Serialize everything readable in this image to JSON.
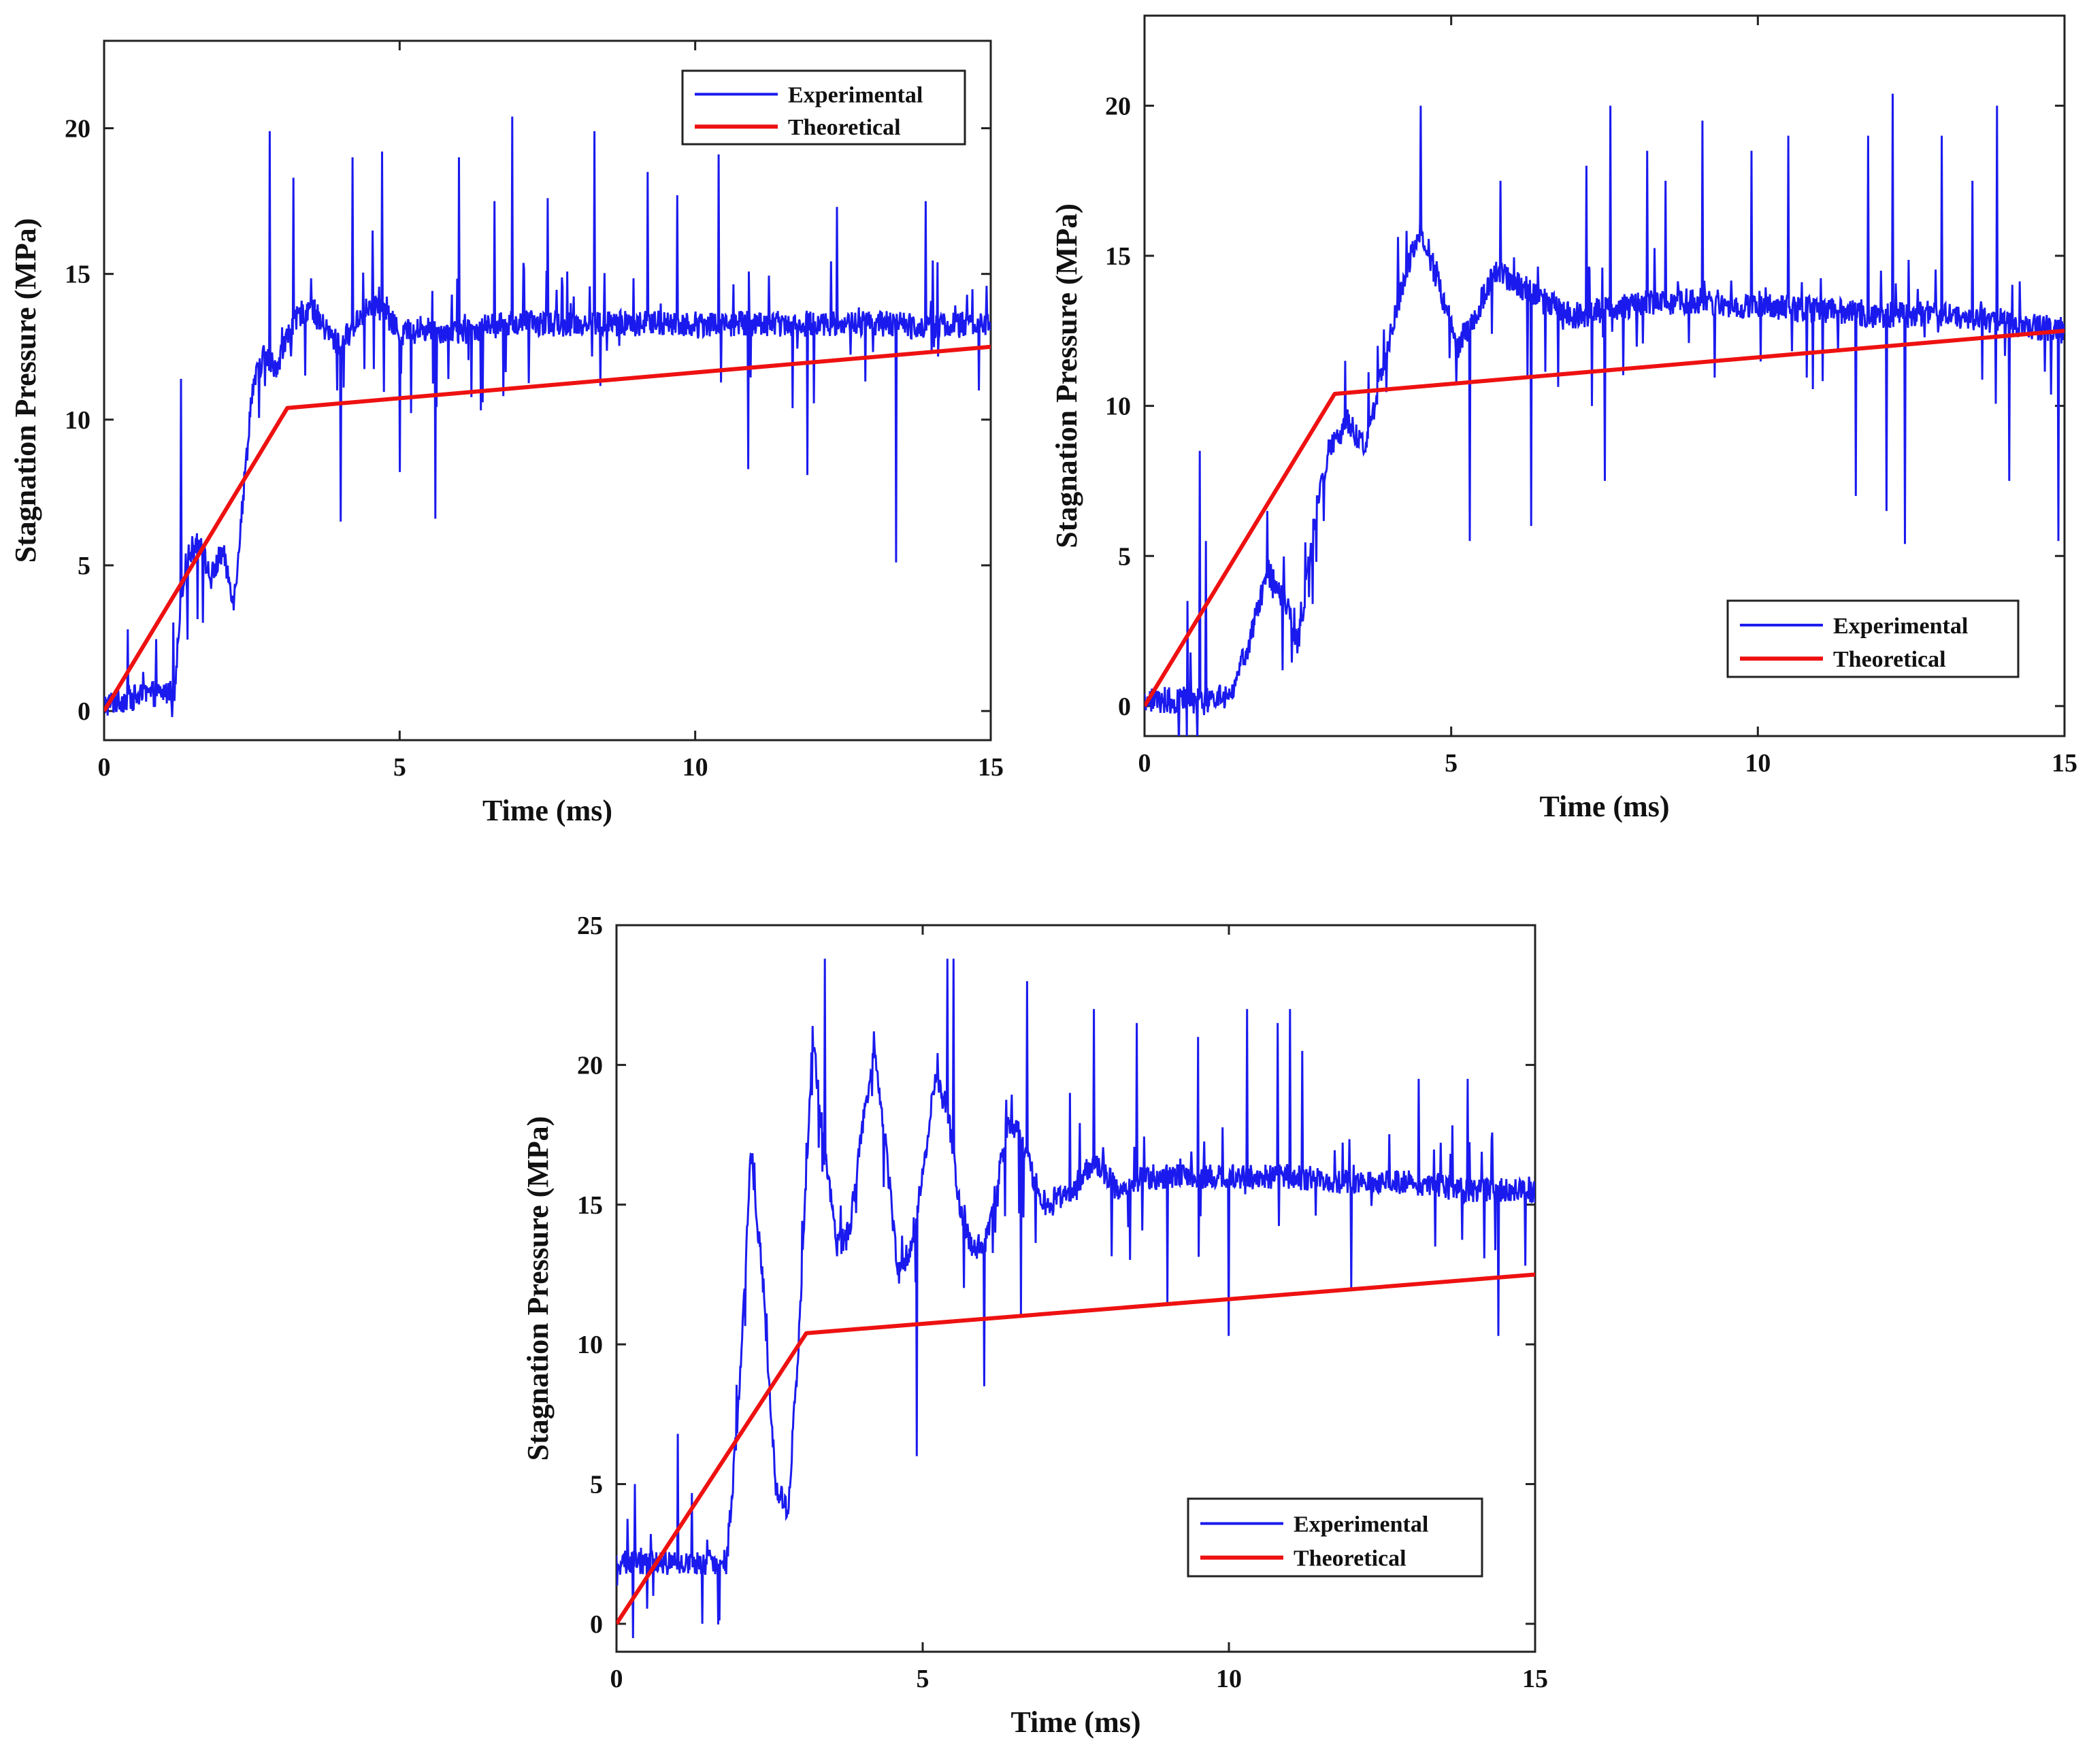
{
  "colors": {
    "experimental": "#1a1aee",
    "theoretical": "#ee1111",
    "axes": "#222222"
  },
  "chart_data": [
    {
      "type": "line",
      "xlabel": "Time (ms)",
      "ylabel": "Stagnation Pressure (MPa)",
      "xlim": [
        0,
        15
      ],
      "ylim": [
        -1,
        23
      ],
      "xticks": [
        "0",
        "5",
        "10",
        "15"
      ],
      "yticks": [
        "0",
        "5",
        "10",
        "15",
        "20"
      ],
      "grid": false,
      "legend_position": "top-right",
      "series": [
        {
          "name": "Experimental",
          "x": [
            0,
            0.3,
            0.6,
            0.9,
            1.2,
            1.3,
            1.4,
            1.6,
            1.8,
            2.0,
            2.2,
            2.4,
            2.5,
            2.7,
            2.9,
            3.1,
            3.3,
            3.5,
            3.7,
            4.0,
            4.3,
            4.6,
            5.0,
            5.5,
            6.0,
            6.5,
            7.0,
            8.0,
            9.0,
            10.0,
            11.0,
            12.0,
            13.0,
            14.0,
            15.0
          ],
          "y": [
            0.2,
            0.4,
            0.5,
            0.6,
            0.7,
            4.0,
            5.2,
            6.0,
            4.5,
            5.5,
            3.8,
            8.5,
            11.0,
            12.2,
            11.8,
            12.8,
            13.6,
            13.9,
            13.2,
            12.5,
            13.5,
            14.0,
            13.0,
            13.1,
            13.0,
            13.2,
            13.3,
            13.3,
            13.3,
            13.3,
            13.3,
            13.3,
            13.3,
            13.2,
            13.3
          ]
        },
        {
          "name": "Theoretical",
          "x": [
            0,
            3.1,
            15
          ],
          "y": [
            0,
            10.4,
            12.5
          ]
        }
      ],
      "spikes": [
        [
          0.4,
          2.8
        ],
        [
          1.3,
          11.4
        ],
        [
          2.8,
          19.9
        ],
        [
          3.2,
          18.3
        ],
        [
          4.0,
          6.5
        ],
        [
          4.2,
          19.0
        ],
        [
          4.7,
          19.2
        ],
        [
          5.0,
          8.2
        ],
        [
          5.6,
          6.6
        ],
        [
          6.0,
          19.0
        ],
        [
          6.6,
          17.5
        ],
        [
          6.9,
          20.4
        ],
        [
          7.5,
          17.6
        ],
        [
          8.3,
          19.9
        ],
        [
          9.2,
          18.5
        ],
        [
          9.7,
          17.7
        ],
        [
          10.4,
          19.1
        ],
        [
          10.9,
          8.3
        ],
        [
          11.9,
          8.1
        ],
        [
          12.4,
          17.3
        ],
        [
          13.4,
          5.1
        ],
        [
          13.9,
          17.5
        ],
        [
          14.1,
          15.4
        ],
        [
          14.8,
          11.0
        ]
      ]
    },
    {
      "type": "line",
      "xlabel": "Time (ms)",
      "ylabel": "Stagnation Pressure (MPa)",
      "xlim": [
        0,
        15
      ],
      "ylim": [
        -1,
        23
      ],
      "xticks": [
        "0",
        "5",
        "10",
        "15"
      ],
      "yticks": [
        "0",
        "5",
        "10",
        "15",
        "20"
      ],
      "grid": false,
      "legend_position": "bottom-right",
      "series": [
        {
          "name": "Experimental",
          "x": [
            0,
            0.5,
            1.0,
            1.4,
            1.7,
            2.0,
            2.3,
            2.5,
            2.8,
            3.0,
            3.3,
            3.6,
            3.9,
            4.2,
            4.5,
            4.8,
            5.1,
            5.4,
            5.7,
            6.0,
            6.5,
            7.0,
            8.0,
            9.0,
            10.0,
            11.0,
            12.0,
            13.0,
            14.0,
            15.0
          ],
          "y": [
            0.2,
            0.2,
            0.2,
            0.4,
            2.0,
            4.5,
            3.5,
            2.0,
            6.5,
            8.5,
            9.5,
            8.5,
            11.5,
            14.0,
            16.0,
            14.0,
            12.0,
            13.0,
            14.5,
            14.2,
            13.5,
            13.0,
            13.4,
            13.5,
            13.3,
            13.2,
            13.0,
            13.1,
            12.8,
            12.5
          ]
        },
        {
          "name": "Theoretical",
          "x": [
            0,
            3.1,
            15
          ],
          "y": [
            0,
            10.4,
            12.5
          ]
        }
      ],
      "spikes": [
        [
          0.7,
          3.5
        ],
        [
          0.9,
          8.5
        ],
        [
          1.0,
          5.5
        ],
        [
          2.0,
          6.5
        ],
        [
          3.8,
          12.0
        ],
        [
          4.5,
          20.0
        ],
        [
          5.3,
          5.5
        ],
        [
          5.8,
          17.5
        ],
        [
          6.3,
          6.0
        ],
        [
          7.2,
          18.0
        ],
        [
          7.5,
          7.5
        ],
        [
          7.6,
          20.0
        ],
        [
          8.2,
          18.5
        ],
        [
          8.5,
          17.5
        ],
        [
          9.1,
          19.5
        ],
        [
          9.9,
          18.5
        ],
        [
          10.5,
          19.0
        ],
        [
          11.6,
          7.0
        ],
        [
          11.8,
          19.0
        ],
        [
          12.1,
          6.5
        ],
        [
          12.2,
          20.4
        ],
        [
          12.4,
          5.4
        ],
        [
          13.0,
          19.0
        ],
        [
          13.5,
          17.5
        ],
        [
          13.9,
          20.0
        ],
        [
          14.1,
          7.5
        ],
        [
          14.9,
          5.5
        ]
      ]
    },
    {
      "type": "line",
      "xlabel": "Time (ms)",
      "ylabel": "Stagnation Pressure (MPa)",
      "xlim": [
        0,
        15
      ],
      "ylim": [
        -1,
        25
      ],
      "xticks": [
        "0",
        "5",
        "10",
        "15"
      ],
      "yticks": [
        "0",
        "5",
        "10",
        "15",
        "20",
        "25"
      ],
      "grid": false,
      "legend_position": "bottom-right",
      "series": [
        {
          "name": "Experimental",
          "x": [
            0,
            0.5,
            1.0,
            1.5,
            1.8,
            2.0,
            2.2,
            2.4,
            2.6,
            2.8,
            3.0,
            3.2,
            3.4,
            3.6,
            3.8,
            4.0,
            4.2,
            4.4,
            4.6,
            4.8,
            5.0,
            5.2,
            5.4,
            5.6,
            5.8,
            6.0,
            6.2,
            6.4,
            6.6,
            6.8,
            7.0,
            7.4,
            7.8,
            8.2,
            8.6,
            9.0,
            9.5,
            10.0,
            11.0,
            12.0,
            13.0,
            14.0,
            15.0
          ],
          "y": [
            2.2,
            2.2,
            2.2,
            2.2,
            2.2,
            8.0,
            17.0,
            12.0,
            5.0,
            4.0,
            11.0,
            21.0,
            17.0,
            13.5,
            14.0,
            17.5,
            20.5,
            17.0,
            12.5,
            13.5,
            16.0,
            19.5,
            18.5,
            15.0,
            13.5,
            13.5,
            15.5,
            18.0,
            17.5,
            16.0,
            15.0,
            15.5,
            16.5,
            15.5,
            16.0,
            16.0,
            16.0,
            16.0,
            16.0,
            15.8,
            15.8,
            15.5,
            15.5
          ]
        },
        {
          "name": "Theoretical",
          "x": [
            0,
            3.1,
            15
          ],
          "y": [
            0,
            10.4,
            12.5
          ]
        }
      ],
      "spikes": [
        [
          0.3,
          5.0
        ],
        [
          0.6,
          1.0
        ],
        [
          1.0,
          6.8
        ],
        [
          1.4,
          0.0
        ],
        [
          3.4,
          23.8
        ],
        [
          4.2,
          21.2
        ],
        [
          4.9,
          6.0
        ],
        [
          5.4,
          23.8
        ],
        [
          5.5,
          23.8
        ],
        [
          6.0,
          8.5
        ],
        [
          6.6,
          11.0
        ],
        [
          6.7,
          23.0
        ],
        [
          7.4,
          19.0
        ],
        [
          7.8,
          22.0
        ],
        [
          8.5,
          21.5
        ],
        [
          9.0,
          11.5
        ],
        [
          9.5,
          21.0
        ],
        [
          10.0,
          10.3
        ],
        [
          10.3,
          22.0
        ],
        [
          10.8,
          21.5
        ],
        [
          11.0,
          22.0
        ],
        [
          11.2,
          20.5
        ],
        [
          12.0,
          12.0
        ],
        [
          13.1,
          19.5
        ],
        [
          13.9,
          19.5
        ],
        [
          14.4,
          10.3
        ],
        [
          14.9,
          16.0
        ]
      ]
    }
  ]
}
